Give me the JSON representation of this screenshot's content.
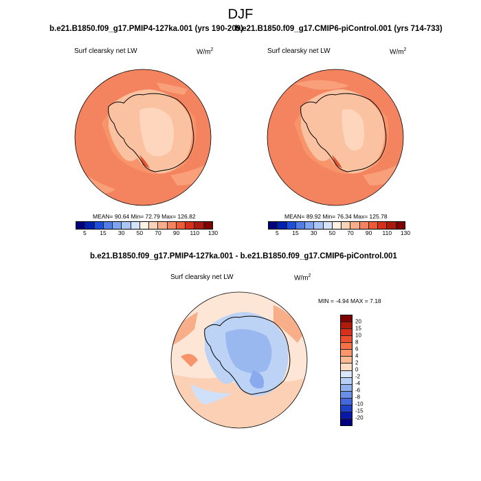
{
  "season": "DJF",
  "panels": {
    "left": {
      "title": "b.e21.B1850.f09_g17.PMIP4-127ka.001 (yrs 190-209)",
      "variable": "Surf clearsky net LW",
      "units": "W/m",
      "units_exp": "2",
      "stats": "MEAN=  90.64   Min=  72.79   Max= 126.82"
    },
    "right": {
      "title": "b.e21.B1850.f09_g17.CMIP6-piControl.001 (yrs 714-733)",
      "variable": "Surf clearsky net LW",
      "units": "W/m",
      "units_exp": "2",
      "stats": "MEAN=  89.92   Min=  76.34   Max= 125.78"
    },
    "diff": {
      "title": "b.e21.B1850.f09_g17.PMIP4-127ka.001 - b.e21.B1850.f09_g17.CMIP6-piControl.001",
      "variable": "Surf clearsky net LW",
      "units": "W/m",
      "units_exp": "2",
      "stats": "MIN =  -4.94 MAX =   7.18"
    }
  },
  "colorbar_abs": {
    "ticks": [
      "5",
      "15",
      "30",
      "50",
      "70",
      "90",
      "110",
      "130"
    ],
    "colors": [
      "#00007f",
      "#0020b0",
      "#1f4fd8",
      "#4f7ee8",
      "#7fa5f0",
      "#a9c6f6",
      "#d3e3fb",
      "#fdf0e4",
      "#fcd2b8",
      "#f9ae8a",
      "#f4845f",
      "#ec5a36",
      "#d7301a",
      "#a91a10",
      "#7f0000"
    ]
  },
  "colorbar_diff": {
    "ticks": [
      "20",
      "15",
      "10",
      "8",
      "6",
      "4",
      "2",
      "0",
      "-2",
      "-4",
      "-6",
      "-8",
      "-10",
      "-15",
      "-20"
    ],
    "colors": [
      "#7f0000",
      "#b01a0a",
      "#d8301a",
      "#ec5030",
      "#f57248",
      "#f9966c",
      "#fbba94",
      "#fdddc6",
      "#dbe8fb",
      "#b8d0f6",
      "#90b2ef",
      "#6a8fe6",
      "#4468dc",
      "#2040c8",
      "#0818a8",
      "#000080"
    ]
  }
}
